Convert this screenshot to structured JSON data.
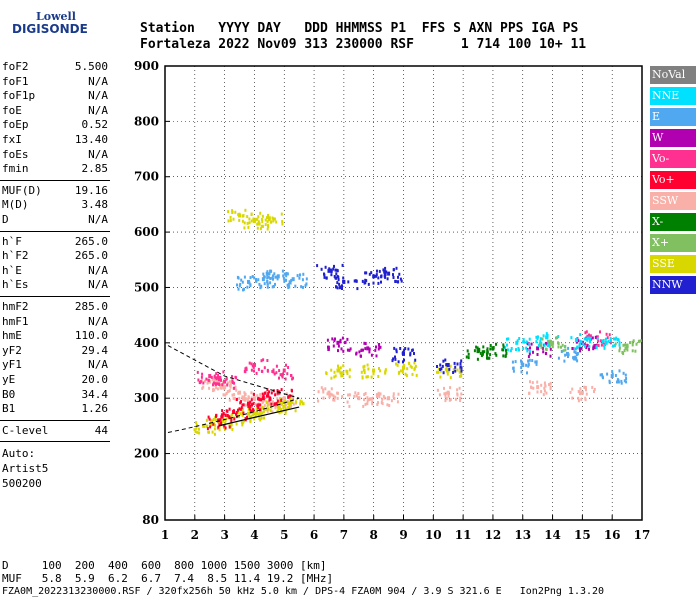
{
  "logo": {
    "top": "Lowell",
    "main": "DIGISONDE"
  },
  "header": {
    "line1": "Station   YYYY DAY   DDD HHMMSS P1  FFS S AXN PPS IGA PS",
    "line2": "Fortaleza 2022 Nov09 313 230000 RSF      1 714 100 10+ 11"
  },
  "params_group1": [
    {
      "name": "foF2",
      "value": "5.500"
    },
    {
      "name": "foF1",
      "value": "N/A"
    },
    {
      "name": "foF1p",
      "value": "N/A"
    },
    {
      "name": "foE",
      "value": "N/A"
    },
    {
      "name": "foEp",
      "value": "0.52"
    },
    {
      "name": "fxI",
      "value": "13.40"
    },
    {
      "name": "foEs",
      "value": "N/A"
    },
    {
      "name": "fmin",
      "value": "2.85"
    }
  ],
  "params_group2": [
    {
      "name": "MUF(D)",
      "value": "19.16"
    },
    {
      "name": "M(D)",
      "value": "3.48"
    },
    {
      "name": "D",
      "value": "N/A"
    }
  ],
  "params_group3": [
    {
      "name": "h`F",
      "value": "265.0"
    },
    {
      "name": "h`F2",
      "value": "265.0"
    },
    {
      "name": "h`E",
      "value": "N/A"
    },
    {
      "name": "h`Es",
      "value": "N/A"
    }
  ],
  "params_group4": [
    {
      "name": "hmF2",
      "value": "285.0"
    },
    {
      "name": "hmF1",
      "value": "N/A"
    },
    {
      "name": "hmE",
      "value": "110.0"
    },
    {
      "name": "yF2",
      "value": "29.4"
    },
    {
      "name": "yF1",
      "value": "N/A"
    },
    {
      "name": "yE",
      "value": "20.0"
    },
    {
      "name": "B0",
      "value": "34.4"
    },
    {
      "name": "B1",
      "value": "1.26"
    }
  ],
  "clevel": {
    "name": "C-level",
    "value": "44"
  },
  "auto": {
    "line1": "Auto:",
    "line2": "Artist5",
    "line3": "500200"
  },
  "legend": [
    {
      "label": "NoVal",
      "color": "#808080"
    },
    {
      "label": "NNE",
      "color": "#00e0ff"
    },
    {
      "label": "E",
      "color": "#50a8f0"
    },
    {
      "label": "W",
      "color": "#b000b0"
    },
    {
      "label": "Vo-",
      "color": "#ff3090"
    },
    {
      "label": "Vo+",
      "color": "#ff0030"
    },
    {
      "label": "SSW",
      "color": "#f8b0a8"
    },
    {
      "label": "X-",
      "color": "#008000"
    },
    {
      "label": "X+",
      "color": "#80c060"
    },
    {
      "label": "SSE",
      "color": "#d8d800"
    },
    {
      "label": "NNW",
      "color": "#2020d0"
    }
  ],
  "footer": {
    "line1": "D     100  200  400  600  800 1000 1500 3000 [km]",
    "line2": "MUF   5.8  5.9  6.2  6.7  7.4  8.5 11.4 19.2 [MHz]",
    "line3": "FZA0M_2022313230000.RSF / 320fx256h 50 kHz 5.0 km / DPS-4 FZA0M 904 / 3.9 S 321.6 E   Ion2Png 1.3.20"
  },
  "chart_data": {
    "type": "scatter",
    "xlim": [
      1,
      17
    ],
    "ylim": [
      80,
      900
    ],
    "x_ticks": [
      1,
      2,
      3,
      4,
      5,
      6,
      7,
      8,
      9,
      10,
      11,
      12,
      13,
      14,
      15,
      16,
      17
    ],
    "y_ticks": [
      80,
      200,
      300,
      400,
      500,
      600,
      700,
      800,
      900
    ],
    "grid": true,
    "legend_position": "right",
    "series": [
      {
        "name": "SSW",
        "color": "#f8b0a8",
        "x": [
          2.5,
          3.0,
          3.5,
          4.0,
          4.5,
          5.0,
          6.5,
          7.5,
          8.5,
          10.5,
          13.5,
          15.0
        ],
        "y": [
          330,
          320,
          310,
          300,
          290,
          300,
          310,
          300,
          300,
          310,
          320,
          310
        ]
      },
      {
        "name": "SSE",
        "color": "#d8d800",
        "x": [
          2.3,
          2.8,
          3.2,
          3.8,
          4.2,
          4.8,
          5.2,
          3.5,
          4.0,
          4.5,
          6.8,
          8.0,
          9.0,
          10.5
        ],
        "y": [
          250,
          258,
          265,
          272,
          278,
          285,
          290,
          630,
          620,
          625,
          350,
          350,
          355,
          350
        ]
      },
      {
        "name": "E",
        "color": "#50a8f0",
        "x": [
          3.8,
          4.3,
          4.8,
          5.3,
          13.0,
          14.5,
          16.0
        ],
        "y": [
          510,
          515,
          520,
          515,
          360,
          380,
          340
        ]
      },
      {
        "name": "NNW",
        "color": "#2020d0",
        "x": [
          6.5,
          7.0,
          8.0,
          8.5,
          9.0,
          10.5
        ],
        "y": [
          530,
          510,
          520,
          525,
          380,
          360
        ]
      },
      {
        "name": "Vo+",
        "color": "#ff0030",
        "x": [
          2.8,
          3.3,
          3.8,
          4.3,
          4.8
        ],
        "y": [
          260,
          275,
          290,
          300,
          310
        ]
      },
      {
        "name": "Vo-",
        "color": "#ff3090",
        "x": [
          2.5,
          3.0,
          4.0,
          5.0,
          15.5
        ],
        "y": [
          340,
          330,
          360,
          350,
          410
        ]
      },
      {
        "name": "W",
        "color": "#b000b0",
        "x": [
          6.8,
          7.8,
          13.5,
          15.0
        ],
        "y": [
          400,
          390,
          390,
          400
        ]
      },
      {
        "name": "NNE",
        "color": "#00e0ff",
        "x": [
          12.8,
          13.8,
          14.8,
          15.8
        ],
        "y": [
          400,
          410,
          405,
          400
        ]
      },
      {
        "name": "X-",
        "color": "#008000",
        "x": [
          11.5,
          12.0
        ],
        "y": [
          385,
          390
        ]
      },
      {
        "name": "X+",
        "color": "#80c060",
        "x": [
          14.0,
          16.5
        ],
        "y": [
          400,
          395
        ]
      }
    ]
  }
}
